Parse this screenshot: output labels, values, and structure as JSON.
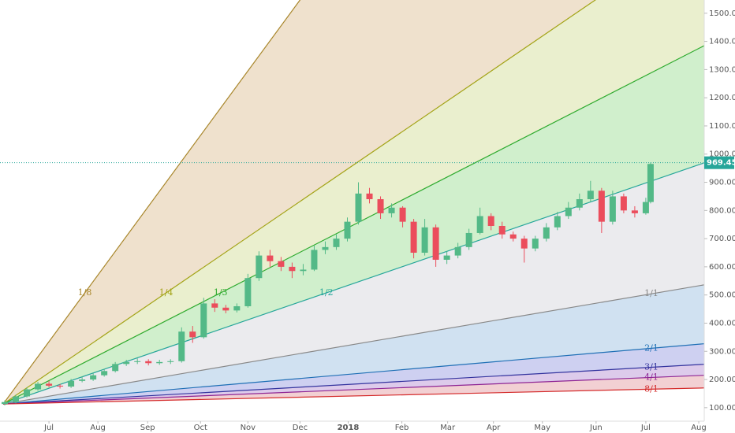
{
  "chart_data": {
    "type": "candlestick",
    "x": [
      3,
      10,
      17,
      24,
      31,
      38,
      45,
      52,
      59,
      66,
      73,
      80,
      87,
      94,
      101,
      108,
      115,
      122,
      129,
      136,
      143,
      150,
      157,
      164,
      171,
      178,
      185,
      192,
      199,
      206,
      213,
      220,
      227,
      234,
      241,
      248,
      255,
      262,
      269,
      276,
      283,
      290,
      297,
      304,
      311,
      318,
      325,
      332,
      339,
      346,
      353,
      360,
      367,
      374,
      381,
      388,
      395,
      402,
      409,
      412
    ],
    "open": [
      113,
      120,
      140,
      165,
      185,
      178,
      175,
      195,
      200,
      215,
      230,
      255,
      262,
      265,
      258,
      262,
      265,
      370,
      350,
      470,
      455,
      445,
      460,
      560,
      640,
      620,
      600,
      585,
      590,
      660,
      670,
      700,
      760,
      860,
      840,
      790,
      810,
      760,
      650,
      740,
      625,
      640,
      670,
      720,
      780,
      745,
      715,
      700,
      665,
      700,
      740,
      780,
      810,
      840,
      870,
      760,
      850,
      800,
      790,
      830
    ],
    "high": [
      126,
      146,
      172,
      192,
      195,
      184,
      202,
      210,
      222,
      238,
      262,
      270,
      275,
      272,
      270,
      272,
      385,
      390,
      490,
      485,
      465,
      470,
      575,
      655,
      660,
      635,
      615,
      610,
      675,
      690,
      715,
      775,
      900,
      880,
      850,
      825,
      815,
      770,
      770,
      750,
      655,
      685,
      735,
      810,
      790,
      760,
      725,
      710,
      710,
      755,
      795,
      830,
      860,
      905,
      880,
      870,
      860,
      815,
      845,
      970
    ],
    "low": [
      108,
      115,
      136,
      160,
      172,
      168,
      170,
      190,
      195,
      210,
      225,
      248,
      255,
      250,
      252,
      255,
      260,
      330,
      345,
      440,
      435,
      438,
      455,
      550,
      600,
      585,
      560,
      570,
      585,
      645,
      660,
      690,
      750,
      825,
      770,
      775,
      740,
      630,
      640,
      600,
      610,
      630,
      660,
      715,
      730,
      700,
      690,
      615,
      655,
      690,
      730,
      770,
      800,
      830,
      720,
      750,
      790,
      775,
      785,
      825
    ],
    "close": [
      120,
      140,
      165,
      185,
      178,
      175,
      195,
      200,
      215,
      230,
      255,
      262,
      265,
      258,
      262,
      265,
      370,
      350,
      470,
      455,
      445,
      460,
      560,
      640,
      620,
      600,
      585,
      590,
      660,
      670,
      700,
      760,
      860,
      840,
      790,
      810,
      760,
      650,
      740,
      625,
      640,
      670,
      720,
      780,
      745,
      715,
      700,
      665,
      700,
      740,
      780,
      810,
      840,
      870,
      760,
      850,
      800,
      790,
      830,
      965
    ],
    "up_color": "#53b987",
    "down_color": "#eb4d5c",
    "xlim": [
      0,
      446
    ],
    "ylim": [
      52,
      1547
    ],
    "xticks": [
      {
        "value": 31,
        "label": "Jul"
      },
      {
        "value": 62,
        "label": "Aug"
      },
      {
        "value": 93.5,
        "label": "Sep"
      },
      {
        "value": 127,
        "label": "Oct"
      },
      {
        "value": 157,
        "label": "Nov"
      },
      {
        "value": 190,
        "label": "Dec"
      },
      {
        "value": 220.5,
        "label": "2018"
      },
      {
        "value": 254.5,
        "label": "Feb"
      },
      {
        "value": 283.5,
        "label": "Mar"
      },
      {
        "value": 312.5,
        "label": "Apr"
      },
      {
        "value": 343.5,
        "label": "May"
      },
      {
        "value": 377.5,
        "label": "Jun"
      },
      {
        "value": 409,
        "label": "Jul"
      },
      {
        "value": 442.5,
        "label": "Aug"
      }
    ],
    "yticks": [
      {
        "value": 100,
        "label": "100.00"
      },
      {
        "value": 200,
        "label": "200.00"
      },
      {
        "value": 300,
        "label": "300.00"
      },
      {
        "value": 400,
        "label": "400.00"
      },
      {
        "value": 500,
        "label": "500.00"
      },
      {
        "value": 600,
        "label": "600.00"
      },
      {
        "value": 700,
        "label": "700.00"
      },
      {
        "value": 800,
        "label": "800.00"
      },
      {
        "value": 900,
        "label": "900.00"
      },
      {
        "value": 1000,
        "label": "1000.00"
      },
      {
        "value": 1100,
        "label": "1100.00"
      },
      {
        "value": 1200,
        "label": "1200.00"
      },
      {
        "value": 1300,
        "label": "1300.00"
      },
      {
        "value": 1400,
        "label": "1400.00"
      },
      {
        "value": 1500,
        "label": "1500.00"
      }
    ],
    "fan": {
      "origin": [
        2,
        113
      ],
      "lines": [
        {
          "name": "1/8",
          "color": "#a8862a",
          "fill": "#ecdcc4",
          "end": [
            190,
            1547
          ]
        },
        {
          "name": "1/4",
          "color": "#a3a316",
          "fill": "#e6ecc6",
          "end": [
            377,
            1547
          ]
        },
        {
          "name": "1/3",
          "color": "#2eaa2e",
          "fill": "#c8ecc3",
          "end": [
            446,
            1385
          ]
        },
        {
          "name": "1/2",
          "color": "#26a69a",
          "fill": "#e7e7eb",
          "end": [
            446,
            969
          ]
        },
        {
          "name": "1/1",
          "color": "#888888",
          "fill": "#c8dcef",
          "end": [
            446,
            536
          ]
        },
        {
          "name": "2/1",
          "color": "#1e6fb5",
          "fill": "#c5c8ee",
          "end": [
            446,
            327
          ]
        },
        {
          "name": "3/1",
          "color": "#33339e",
          "fill": "#d7c2e8",
          "end": [
            446,
            254
          ]
        },
        {
          "name": "4/1",
          "color": "#8e2494",
          "fill": "#f0c8cb",
          "end": [
            446,
            215
          ]
        },
        {
          "name": "8/1",
          "color": "#d42a2a",
          "end": [
            446,
            170
          ]
        }
      ]
    },
    "last_price": {
      "value": 969.45,
      "label": "969.45",
      "color": "#26a69a"
    }
  }
}
